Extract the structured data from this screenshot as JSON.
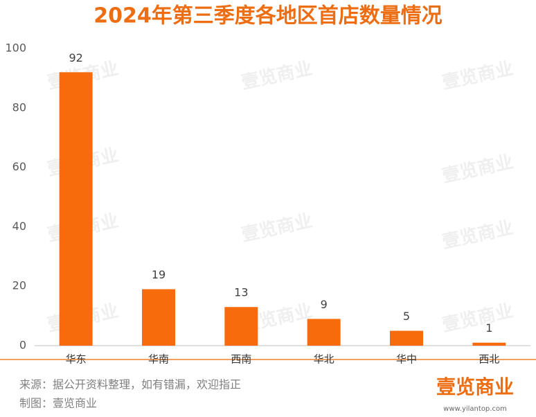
{
  "chart_data": {
    "type": "bar",
    "title": "2024年第三季度各地区首店数量情况",
    "categories": [
      "华东",
      "华南",
      "西南",
      "华北",
      "华中",
      "西北"
    ],
    "values": [
      92,
      19,
      13,
      9,
      5,
      1
    ],
    "color": "#f76b0c",
    "ylim": [
      0,
      100
    ],
    "yticks": [
      0,
      20,
      40,
      60,
      80,
      100
    ],
    "grid": false,
    "source": "来源：据公开资料整理，如有错漏，欢迎指正",
    "credit": "制图：壹览商业",
    "logo": "壹览商业",
    "website": "www.yilantop.com",
    "watermark": "壹览商业"
  }
}
